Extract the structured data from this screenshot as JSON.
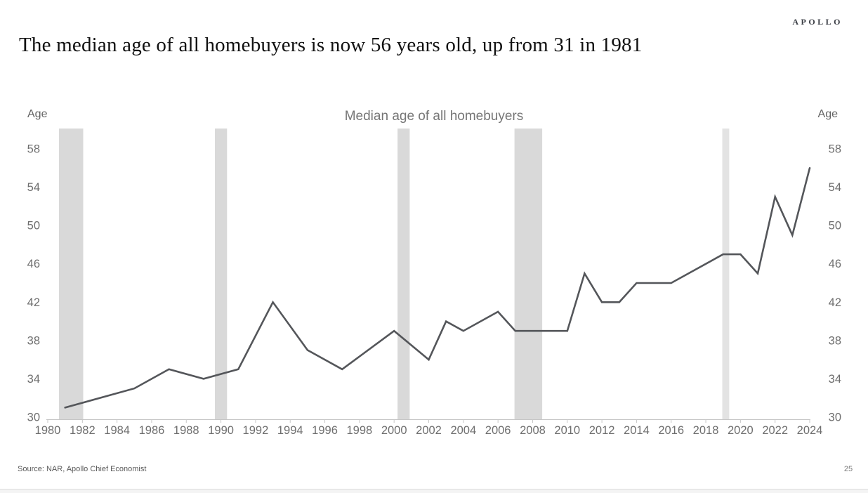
{
  "header": {
    "logo": "APOLLO",
    "title": "The median age of all homebuyers is now 56 years old, up from 31 in 1981"
  },
  "footer": {
    "source": "Source: NAR, Apollo Chief Economist",
    "page_number": "25"
  },
  "chart_data": {
    "type": "line",
    "title": "Median age of all homebuyers",
    "y_axis_unit_label": "Age",
    "xlabel": "",
    "ylabel": "Age",
    "xlim": [
      1980,
      2024
    ],
    "ylim": [
      30,
      60
    ],
    "grid": false,
    "legend_position": "none",
    "x_ticks": [
      1980,
      1982,
      1984,
      1986,
      1988,
      1990,
      1992,
      1994,
      1996,
      1998,
      2000,
      2002,
      2004,
      2006,
      2008,
      2010,
      2012,
      2014,
      2016,
      2018,
      2020,
      2022,
      2024
    ],
    "y_ticks": [
      30,
      34,
      38,
      42,
      46,
      50,
      54,
      58
    ],
    "series": [
      {
        "name": "Median age of all homebuyers",
        "points": [
          [
            1981,
            31
          ],
          [
            1985,
            33
          ],
          [
            1987,
            35
          ],
          [
            1989,
            34
          ],
          [
            1991,
            35
          ],
          [
            1993,
            42
          ],
          [
            1995,
            37
          ],
          [
            1997,
            35
          ],
          [
            2000,
            39
          ],
          [
            2002,
            36
          ],
          [
            2003,
            40
          ],
          [
            2004,
            39
          ],
          [
            2006,
            41
          ],
          [
            2007,
            39
          ],
          [
            2010,
            39
          ],
          [
            2011,
            45
          ],
          [
            2012,
            42
          ],
          [
            2013,
            42
          ],
          [
            2014,
            44
          ],
          [
            2016,
            44
          ],
          [
            2019,
            47
          ],
          [
            2020,
            47
          ],
          [
            2021,
            45
          ],
          [
            2022,
            53
          ],
          [
            2023,
            49
          ],
          [
            2024,
            56
          ]
        ]
      }
    ],
    "recession_bands": [
      {
        "from": 1980.65,
        "to": 1982.05,
        "light": false
      },
      {
        "from": 1989.65,
        "to": 1990.35,
        "light": false
      },
      {
        "from": 2000.2,
        "to": 2000.9,
        "light": false
      },
      {
        "from": 2006.95,
        "to": 2008.55,
        "light": false
      },
      {
        "from": 2018.95,
        "to": 2019.35,
        "light": true
      }
    ],
    "colors": {
      "line": "#54565a",
      "band": "#d9d9d9",
      "band_light": "#e3e3e3",
      "axis": "#c6c6c6",
      "tick_label": "#6e6e6e",
      "chart_title": "#767676"
    }
  }
}
